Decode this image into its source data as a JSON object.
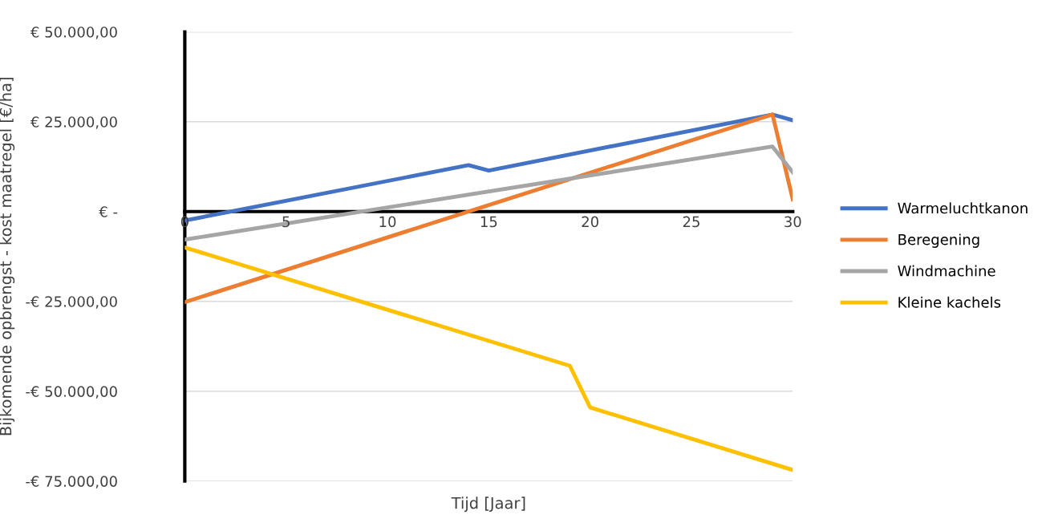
{
  "chart_data": {
    "type": "line",
    "xlabel": "Tijd [Jaar]",
    "ylabel": "Bijkomende opbrengst - kost maatregel [€/ha]",
    "xlim": [
      0,
      30
    ],
    "xticks": [
      0,
      5,
      10,
      15,
      20,
      25,
      30
    ],
    "ylim": [
      -75000,
      50000
    ],
    "yticks": [
      {
        "value": -75000,
        "label": "-€ 75.000,00"
      },
      {
        "value": -50000,
        "label": "-€ 50.000,00"
      },
      {
        "value": -25000,
        "label": "-€ 25.000,00"
      },
      {
        "value": 0,
        "label": "€ -"
      },
      {
        "value": 25000,
        "label": "€ 25.000,00"
      },
      {
        "value": 50000,
        "label": "€ 50.000,00"
      }
    ],
    "grid": "y",
    "legend": "right",
    "marker": "none",
    "line_style": "solid",
    "series": [
      {
        "name": "Warmeluchtkanon",
        "color": "#4472c4",
        "x": [
          0,
          14,
          15,
          29,
          30
        ],
        "values": [
          -2500,
          12900,
          11400,
          27000,
          25400
        ]
      },
      {
        "name": "Beregening",
        "color": "#ed7d31",
        "x": [
          0,
          29,
          30
        ],
        "values": [
          -25200,
          27000,
          3400
        ]
      },
      {
        "name": "Windmachine",
        "color": "#a5a5a5",
        "x": [
          0,
          29,
          30
        ],
        "values": [
          -7800,
          18100,
          10900
        ]
      },
      {
        "name": "Kleine kachels",
        "color": "#ffc000",
        "x": [
          0,
          19,
          20,
          30
        ],
        "values": [
          -10000,
          -42900,
          -54500,
          -71900
        ]
      }
    ]
  }
}
